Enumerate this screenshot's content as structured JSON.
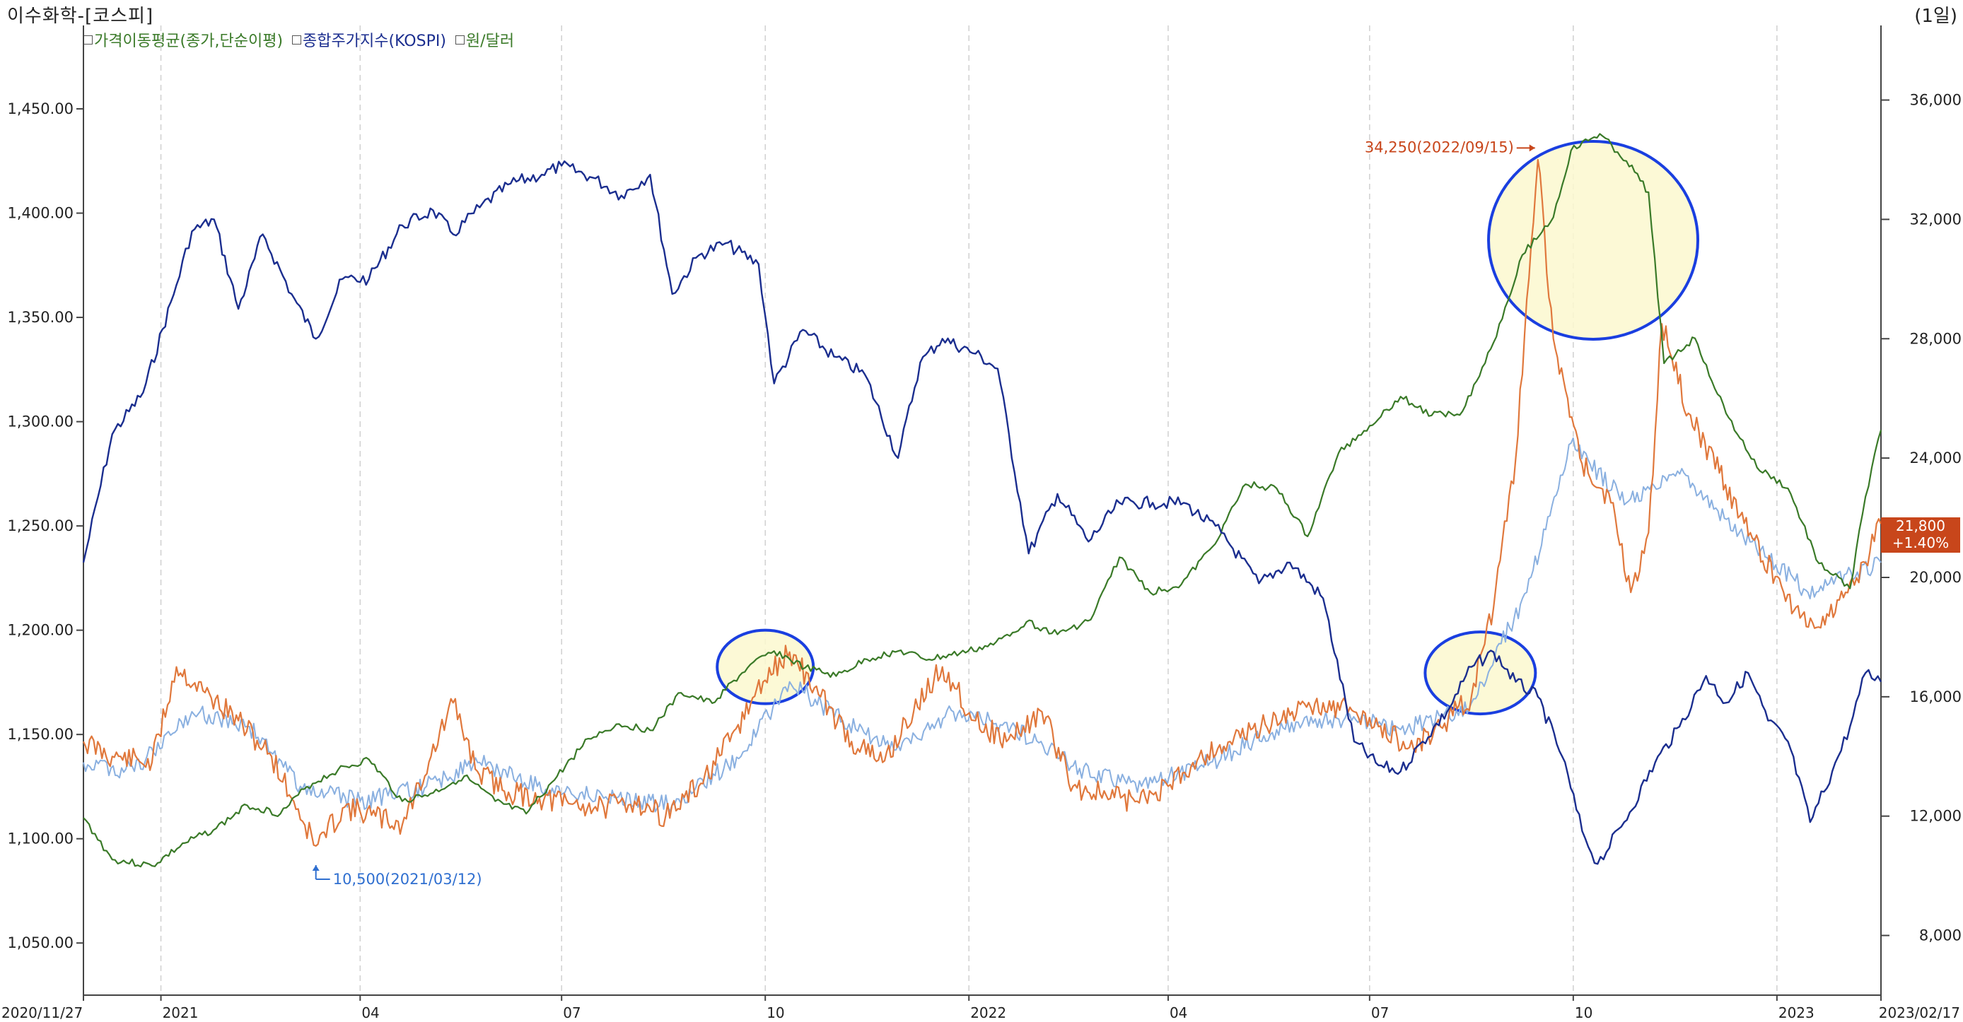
{
  "header": {
    "title": "이수화학-[코스피]",
    "period": "(1일)"
  },
  "legend": [
    {
      "label": "가격이동평균(종가,단순이평)",
      "color": "#3a7a28"
    },
    {
      "label": "종합주가지수(KOSPI)",
      "color": "#1b2e8f"
    },
    {
      "label": "원/달러",
      "color": "#3a7a28"
    }
  ],
  "last_price": {
    "value": "21,800",
    "change": "+1.40%"
  },
  "chart_data": {
    "type": "line",
    "x_range": [
      "2020-11-27",
      "2023-02-17"
    ],
    "x_tick_labels": [
      "2020/11/27",
      "2021",
      "04",
      "07",
      "10",
      "2022",
      "04",
      "07",
      "10",
      "2023",
      "2023/02/17"
    ],
    "left_axis": {
      "ticks": [
        "1,450.00",
        "1,400.00",
        "1,350.00",
        "1,300.00",
        "1,250.00",
        "1,200.00",
        "1,150.00",
        "1,100.00",
        "1,050.00"
      ],
      "range": [
        1025,
        1490
      ]
    },
    "right_axis": {
      "ticks": [
        "36,000",
        "32,000",
        "28,000",
        "24,000",
        "20,000",
        "16,000",
        "12,000",
        "8,000"
      ],
      "range": [
        6000,
        38500
      ]
    },
    "annotations": [
      {
        "text": "34,250(2022/09/15)",
        "date": "2022-09-15",
        "value": 34250,
        "color": "#c8461b"
      },
      {
        "text": "10,500(2021/03/12)",
        "date": "2021-03-12",
        "value": 10500,
        "color": "#2f6fd0"
      }
    ],
    "highlights": [
      {
        "center_date": "2021-10-01",
        "center_value": 17000
      },
      {
        "center_date": "2022-08-20",
        "center_value": 16800
      },
      {
        "center_date": "2022-10-10",
        "center_value": 31300
      }
    ],
    "series": [
      {
        "name": "종합주가지수(KOSPI)",
        "axis": "right",
        "color": "#1b2e8f",
        "points": [
          [
            "2020-11-27",
            20500
          ],
          [
            "2020-12-10",
            24800
          ],
          [
            "2020-12-24",
            26200
          ],
          [
            "2021-01-08",
            29800
          ],
          [
            "2021-01-15",
            31600
          ],
          [
            "2021-01-25",
            32000
          ],
          [
            "2021-02-05",
            29000
          ],
          [
            "2021-02-16",
            31500
          ],
          [
            "2021-03-01",
            29500
          ],
          [
            "2021-03-12",
            28000
          ],
          [
            "2021-03-24",
            30000
          ],
          [
            "2021-04-05",
            30000
          ],
          [
            "2021-04-20",
            31800
          ],
          [
            "2021-05-04",
            32300
          ],
          [
            "2021-05-13",
            31500
          ],
          [
            "2021-05-25",
            32400
          ],
          [
            "2021-06-08",
            33200
          ],
          [
            "2021-06-22",
            33500
          ],
          [
            "2021-07-01",
            33800
          ],
          [
            "2021-07-15",
            33400
          ],
          [
            "2021-07-28",
            32800
          ],
          [
            "2021-08-10",
            33500
          ],
          [
            "2021-08-20",
            29500
          ],
          [
            "2021-09-01",
            30800
          ],
          [
            "2021-09-13",
            31200
          ],
          [
            "2021-09-28",
            30500
          ],
          [
            "2021-10-05",
            26500
          ],
          [
            "2021-10-18",
            28300
          ],
          [
            "2021-11-01",
            27400
          ],
          [
            "2021-11-15",
            26800
          ],
          [
            "2021-11-30",
            24000
          ],
          [
            "2021-12-10",
            27200
          ],
          [
            "2021-12-20",
            28000
          ],
          [
            "2022-01-04",
            27500
          ],
          [
            "2022-01-14",
            27000
          ],
          [
            "2022-01-28",
            20800
          ],
          [
            "2022-02-10",
            22800
          ],
          [
            "2022-02-24",
            21200
          ],
          [
            "2022-03-10",
            22500
          ],
          [
            "2022-03-25",
            22500
          ],
          [
            "2022-04-08",
            22500
          ],
          [
            "2022-04-25",
            21500
          ],
          [
            "2022-05-12",
            19800
          ],
          [
            "2022-05-26",
            20500
          ],
          [
            "2022-06-10",
            19300
          ],
          [
            "2022-06-24",
            14500
          ],
          [
            "2022-07-05",
            13700
          ],
          [
            "2022-07-15",
            13500
          ],
          [
            "2022-07-25",
            14500
          ],
          [
            "2022-08-05",
            15500
          ],
          [
            "2022-08-16",
            17000
          ],
          [
            "2022-08-26",
            17500
          ],
          [
            "2022-09-05",
            16500
          ],
          [
            "2022-09-15",
            16000
          ],
          [
            "2022-09-26",
            14000
          ],
          [
            "2022-10-05",
            11500
          ],
          [
            "2022-10-12",
            10400
          ],
          [
            "2022-10-24",
            11800
          ],
          [
            "2022-11-07",
            13800
          ],
          [
            "2022-11-18",
            15000
          ],
          [
            "2022-11-30",
            16700
          ],
          [
            "2022-12-09",
            15800
          ],
          [
            "2022-12-19",
            16800
          ],
          [
            "2022-12-28",
            15200
          ],
          [
            "2023-01-06",
            14500
          ],
          [
            "2023-01-16",
            11800
          ],
          [
            "2023-01-26",
            13500
          ],
          [
            "2023-02-03",
            15000
          ],
          [
            "2023-02-10",
            16800
          ],
          [
            "2023-02-17",
            16500
          ]
        ]
      },
      {
        "name": "원/달러",
        "axis": "left",
        "color": "#3a7a28",
        "points": [
          [
            "2020-11-27",
            1110
          ],
          [
            "2020-12-10",
            1090
          ],
          [
            "2020-12-28",
            1087
          ],
          [
            "2021-01-12",
            1098
          ],
          [
            "2021-01-26",
            1105
          ],
          [
            "2021-02-09",
            1116
          ],
          [
            "2021-02-24",
            1112
          ],
          [
            "2021-03-08",
            1125
          ],
          [
            "2021-03-22",
            1133
          ],
          [
            "2021-04-05",
            1138
          ],
          [
            "2021-04-20",
            1118
          ],
          [
            "2021-05-04",
            1122
          ],
          [
            "2021-05-18",
            1130
          ],
          [
            "2021-06-01",
            1118
          ],
          [
            "2021-06-15",
            1112
          ],
          [
            "2021-06-29",
            1130
          ],
          [
            "2021-07-13",
            1148
          ],
          [
            "2021-07-27",
            1155
          ],
          [
            "2021-08-10",
            1152
          ],
          [
            "2021-08-24",
            1170
          ],
          [
            "2021-09-07",
            1165
          ],
          [
            "2021-09-23",
            1182
          ],
          [
            "2021-10-05",
            1190
          ],
          [
            "2021-10-19",
            1182
          ],
          [
            "2021-11-02",
            1178
          ],
          [
            "2021-11-16",
            1186
          ],
          [
            "2021-11-30",
            1190
          ],
          [
            "2021-12-14",
            1186
          ],
          [
            "2021-12-28",
            1189
          ],
          [
            "2022-01-12",
            1193
          ],
          [
            "2022-01-27",
            1204
          ],
          [
            "2022-02-10",
            1198
          ],
          [
            "2022-02-25",
            1205
          ],
          [
            "2022-03-10",
            1235
          ],
          [
            "2022-03-24",
            1218
          ],
          [
            "2022-04-07",
            1222
          ],
          [
            "2022-04-21",
            1240
          ],
          [
            "2022-05-06",
            1270
          ],
          [
            "2022-05-20",
            1268
          ],
          [
            "2022-06-03",
            1245
          ],
          [
            "2022-06-17",
            1285
          ],
          [
            "2022-07-01",
            1298
          ],
          [
            "2022-07-15",
            1312
          ],
          [
            "2022-07-29",
            1303
          ],
          [
            "2022-08-12",
            1305
          ],
          [
            "2022-08-26",
            1338
          ],
          [
            "2022-09-08",
            1380
          ],
          [
            "2022-09-22",
            1398
          ],
          [
            "2022-09-30",
            1430
          ],
          [
            "2022-10-13",
            1438
          ],
          [
            "2022-10-25",
            1425
          ],
          [
            "2022-11-04",
            1410
          ],
          [
            "2022-11-11",
            1328
          ],
          [
            "2022-11-25",
            1340
          ],
          [
            "2022-12-09",
            1304
          ],
          [
            "2022-12-23",
            1278
          ],
          [
            "2023-01-06",
            1268
          ],
          [
            "2023-01-20",
            1232
          ],
          [
            "2023-02-03",
            1220
          ],
          [
            "2023-02-10",
            1264
          ],
          [
            "2023-02-17",
            1296
          ]
        ]
      },
      {
        "name": "이수화학",
        "axis": "right",
        "color": "#e0783c",
        "points": [
          [
            "2020-11-27",
            14500
          ],
          [
            "2020-12-10",
            14000
          ],
          [
            "2020-12-28",
            13800
          ],
          [
            "2021-01-08",
            17000
          ],
          [
            "2021-01-20",
            16200
          ],
          [
            "2021-02-05",
            15200
          ],
          [
            "2021-02-20",
            14000
          ],
          [
            "2021-03-02",
            12500
          ],
          [
            "2021-03-12",
            11000
          ],
          [
            "2021-03-25",
            12300
          ],
          [
            "2021-04-08",
            12000
          ],
          [
            "2021-04-20",
            11700
          ],
          [
            "2021-05-03",
            14000
          ],
          [
            "2021-05-13",
            15800
          ],
          [
            "2021-05-24",
            13500
          ],
          [
            "2021-06-07",
            12800
          ],
          [
            "2021-06-21",
            12600
          ],
          [
            "2021-07-06",
            12400
          ],
          [
            "2021-07-20",
            12300
          ],
          [
            "2021-08-03",
            12500
          ],
          [
            "2021-08-17",
            12000
          ],
          [
            "2021-09-01",
            13000
          ],
          [
            "2021-09-15",
            14500
          ],
          [
            "2021-09-30",
            16500
          ],
          [
            "2021-10-12",
            17500
          ],
          [
            "2021-10-26",
            16000
          ],
          [
            "2021-11-09",
            14500
          ],
          [
            "2021-11-23",
            13800
          ],
          [
            "2021-12-07",
            15500
          ],
          [
            "2021-12-20",
            17000
          ],
          [
            "2022-01-04",
            15200
          ],
          [
            "2022-01-18",
            14500
          ],
          [
            "2022-02-03",
            15500
          ],
          [
            "2022-02-17",
            13000
          ],
          [
            "2022-03-04",
            12700
          ],
          [
            "2022-03-18",
            12500
          ],
          [
            "2022-04-01",
            13000
          ],
          [
            "2022-04-15",
            14000
          ],
          [
            "2022-04-29",
            14500
          ],
          [
            "2022-05-13",
            15000
          ],
          [
            "2022-05-27",
            15500
          ],
          [
            "2022-06-10",
            15800
          ],
          [
            "2022-06-24",
            15500
          ],
          [
            "2022-07-05",
            15000
          ],
          [
            "2022-07-19",
            14300
          ],
          [
            "2022-08-02",
            15000
          ],
          [
            "2022-08-16",
            16000
          ],
          [
            "2022-08-26",
            19000
          ],
          [
            "2022-09-05",
            24000
          ],
          [
            "2022-09-15",
            34000
          ],
          [
            "2022-09-22",
            28000
          ],
          [
            "2022-10-04",
            24000
          ],
          [
            "2022-10-18",
            22500
          ],
          [
            "2022-10-27",
            19500
          ],
          [
            "2022-11-04",
            21500
          ],
          [
            "2022-11-10",
            28500
          ],
          [
            "2022-11-22",
            25500
          ],
          [
            "2022-12-06",
            23500
          ],
          [
            "2022-12-20",
            21500
          ],
          [
            "2023-01-04",
            19500
          ],
          [
            "2023-01-18",
            18300
          ],
          [
            "2023-02-01",
            19500
          ],
          [
            "2023-02-10",
            20500
          ],
          [
            "2023-02-17",
            21800
          ]
        ]
      },
      {
        "name": "가격이동평균(종가,단순이평)",
        "axis": "right",
        "color": "#8ab0e0",
        "points": [
          [
            "2020-11-27",
            13800
          ],
          [
            "2020-12-20",
            13500
          ],
          [
            "2021-01-15",
            15500
          ],
          [
            "2021-02-10",
            15000
          ],
          [
            "2021-03-05",
            13000
          ],
          [
            "2021-04-01",
            12500
          ],
          [
            "2021-05-01",
            13000
          ],
          [
            "2021-05-25",
            13800
          ],
          [
            "2021-06-20",
            13000
          ],
          [
            "2021-07-20",
            12600
          ],
          [
            "2021-08-20",
            12400
          ],
          [
            "2021-09-20",
            14000
          ],
          [
            "2021-10-12",
            16500
          ],
          [
            "2021-11-05",
            15200
          ],
          [
            "2021-12-01",
            14200
          ],
          [
            "2021-12-25",
            15500
          ],
          [
            "2022-01-20",
            15000
          ],
          [
            "2022-02-20",
            13600
          ],
          [
            "2022-03-20",
            13000
          ],
          [
            "2022-04-20",
            13800
          ],
          [
            "2022-05-20",
            14900
          ],
          [
            "2022-06-20",
            15300
          ],
          [
            "2022-07-15",
            14900
          ],
          [
            "2022-08-15",
            15600
          ],
          [
            "2022-09-10",
            19500
          ],
          [
            "2022-09-30",
            24500
          ],
          [
            "2022-10-25",
            22500
          ],
          [
            "2022-11-20",
            23500
          ],
          [
            "2022-12-15",
            21500
          ],
          [
            "2023-01-15",
            19500
          ],
          [
            "2023-02-17",
            20500
          ]
        ]
      }
    ]
  }
}
